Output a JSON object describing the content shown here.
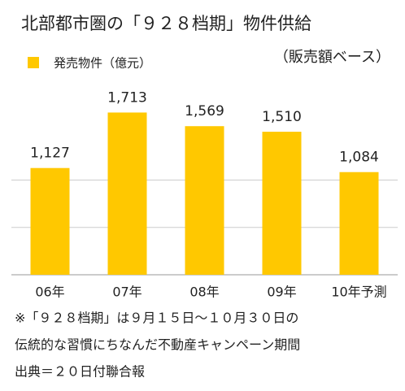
{
  "chart_data": {
    "type": "bar",
    "title": "北部都市圏の「９２８档期」物件供給",
    "subtitle": "（販売額ベース）",
    "categories": [
      "06年",
      "07年",
      "08年",
      "09年",
      "10年予測"
    ],
    "series": [
      {
        "name": "発売物件（億元）",
        "color": "#ffc800",
        "values": [
          1127,
          1713,
          1569,
          1510,
          1084
        ],
        "value_labels": [
          "1,127",
          "1,713",
          "1,569",
          "1,510",
          "1,084"
        ]
      }
    ],
    "ylim": [
      0,
      2000
    ],
    "yticks": [
      0,
      500,
      1000
    ],
    "grid": true,
    "notes": [
      "※「９２８档期」は９月１５日～１０月３０日の",
      "伝統的な習慣にちなんだ不動産キャンペーン期間",
      "出典＝２０日付聯合報"
    ]
  }
}
